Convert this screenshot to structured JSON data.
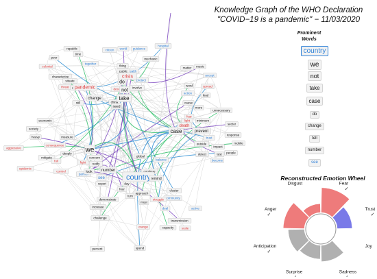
{
  "title": {
    "line1": "Knowledge Graph of the WHO Declaration",
    "line2": "\"COVID−19 is a pandemic\" − 11/03/2020"
  },
  "colors": {
    "edge_green": "#2fc06a",
    "edge_blue": "#2f8fd4",
    "edge_gray": "#c8c8c8",
    "edge_purple": "#7a45c0",
    "edge_red": "#e06060",
    "word_red": "#e03a3a",
    "word_blue": "#2b7fd8",
    "word_black": "#111111",
    "node_fill": "#f2f2f2",
    "node_stroke": "#cfcfcf",
    "emotion_positive": "#ee7b7b",
    "emotion_negative": "#b0b0b0",
    "emotion_trust": "#7a7ae8"
  },
  "prominent_words": {
    "header": "Prominent Words",
    "items": [
      {
        "word": "country",
        "color": "blue",
        "size": 10
      },
      {
        "word": "we",
        "color": "black",
        "size": 10
      },
      {
        "word": "not",
        "color": "black",
        "size": 9
      },
      {
        "word": "take",
        "color": "black",
        "size": 8
      },
      {
        "word": "case",
        "color": "black",
        "size": 8
      },
      {
        "word": "do",
        "color": "black",
        "size": 6
      },
      {
        "word": "change",
        "color": "black",
        "size": 6
      },
      {
        "word": "tell",
        "color": "black",
        "size": 6
      },
      {
        "word": "number",
        "color": "black",
        "size": 6
      },
      {
        "word": "see",
        "color": "blue",
        "size": 6
      }
    ]
  },
  "graph": {
    "hubs": [
      {
        "word": "country",
        "color": "blue",
        "size": 11
      },
      {
        "word": "we",
        "color": "black",
        "size": 10
      },
      {
        "word": "take",
        "color": "black",
        "size": 8
      },
      {
        "word": "case",
        "color": "black",
        "size": 8
      },
      {
        "word": "not",
        "color": "black",
        "size": 7
      },
      {
        "word": "do",
        "color": "black",
        "size": 7
      },
      {
        "word": "change",
        "color": "black",
        "size": 6
      },
      {
        "word": "crisis",
        "color": "red",
        "size": 7
      },
      {
        "word": "pandemic",
        "color": "red",
        "size": 7
      },
      {
        "word": "death",
        "color": "red",
        "size": 6
      },
      {
        "word": "prevent",
        "color": "black",
        "size": 6
      },
      {
        "word": "number",
        "color": "black",
        "size": 6
      },
      {
        "word": "see",
        "color": "blue",
        "size": 6
      },
      {
        "word": "look",
        "color": "black",
        "size": 5
      },
      {
        "word": "need",
        "color": "black",
        "size": 5
      },
      {
        "word": "remind",
        "color": "black",
        "size": 5
      }
    ],
    "words": [
      {
        "word": "republic",
        "color": "black"
      },
      {
        "word": "time",
        "color": "black"
      },
      {
        "word": "poor",
        "color": "black"
      },
      {
        "word": "colonial",
        "color": "red"
      },
      {
        "word": "citizen",
        "color": "blue"
      },
      {
        "word": "world",
        "color": "blue"
      },
      {
        "word": "guidance",
        "color": "blue"
      },
      {
        "word": "mechanic",
        "color": "black"
      },
      {
        "word": "hospital",
        "color": "blue"
      },
      {
        "word": "together",
        "color": "blue"
      },
      {
        "word": "thing",
        "color": "black"
      },
      {
        "word": "health",
        "color": "blue"
      },
      {
        "word": "characterize",
        "color": "black"
      },
      {
        "word": "situate",
        "color": "black"
      },
      {
        "word": "public",
        "color": "black"
      },
      {
        "word": "protect",
        "color": "blue"
      },
      {
        "word": "threat",
        "color": "red"
      },
      {
        "word": "assess",
        "color": "black"
      },
      {
        "word": "describe",
        "color": "red"
      },
      {
        "word": "involve",
        "color": "black"
      },
      {
        "word": "still",
        "color": "black"
      },
      {
        "word": "china",
        "color": "black"
      },
      {
        "word": "matter",
        "color": "black"
      },
      {
        "word": "music",
        "color": "black"
      },
      {
        "word": "accept",
        "color": "blue"
      },
      {
        "word": "word",
        "color": "black"
      },
      {
        "word": "spread",
        "color": "red"
      },
      {
        "word": "lead",
        "color": "black"
      },
      {
        "word": "action",
        "color": "blue"
      },
      {
        "word": "cause",
        "color": "black"
      },
      {
        "word": "more",
        "color": "black"
      },
      {
        "word": "unnecessary",
        "color": "black"
      },
      {
        "word": "fear",
        "color": "red"
      },
      {
        "word": "light",
        "color": "red"
      },
      {
        "word": "minimum",
        "color": "black"
      },
      {
        "word": "sector",
        "color": "black"
      },
      {
        "word": "response",
        "color": "black"
      },
      {
        "word": "outside",
        "color": "black"
      },
      {
        "word": "trust",
        "color": "blue"
      },
      {
        "word": "impact",
        "color": "black"
      },
      {
        "word": "detect",
        "color": "black"
      },
      {
        "word": "test",
        "color": "black"
      },
      {
        "word": "become",
        "color": "blue"
      },
      {
        "word": "mobile",
        "color": "black"
      },
      {
        "word": "people",
        "color": "black"
      },
      {
        "word": "economic",
        "color": "black"
      },
      {
        "word": "society",
        "color": "black"
      },
      {
        "word": "heavy",
        "color": "black"
      },
      {
        "word": "measure",
        "color": "black"
      },
      {
        "word": "aggressive",
        "color": "red"
      },
      {
        "word": "consequence",
        "color": "red"
      },
      {
        "word": "mitigate",
        "color": "black"
      },
      {
        "word": "deeply",
        "color": "black"
      },
      {
        "word": "concern",
        "color": "black"
      },
      {
        "word": "notify",
        "color": "black"
      },
      {
        "word": "full",
        "color": "red"
      },
      {
        "word": "fight",
        "color": "red"
      },
      {
        "word": "epidemic",
        "color": "red"
      },
      {
        "word": "control",
        "color": "red"
      },
      {
        "word": "partner",
        "color": "blue"
      },
      {
        "word": "report",
        "color": "black"
      },
      {
        "word": "day",
        "color": "black"
      },
      {
        "word": "global",
        "color": "black"
      },
      {
        "word": "balance",
        "color": "blue"
      },
      {
        "word": "continue",
        "color": "black"
      },
      {
        "word": "four",
        "color": "black"
      },
      {
        "word": "turn",
        "color": "black"
      },
      {
        "word": "approach",
        "color": "black"
      },
      {
        "word": "cluster",
        "color": "black"
      },
      {
        "word": "community",
        "color": "blue"
      },
      {
        "word": "increase",
        "color": "black"
      },
      {
        "word": "demonstrate",
        "color": "black"
      },
      {
        "word": "must",
        "color": "black"
      },
      {
        "word": "challenge",
        "color": "black"
      },
      {
        "word": "struggle",
        "color": "red"
      },
      {
        "word": "deal",
        "color": "blue"
      },
      {
        "word": "active",
        "color": "blue"
      },
      {
        "word": "transmission",
        "color": "black"
      },
      {
        "word": "scale",
        "color": "red"
      },
      {
        "word": "capacity",
        "color": "black"
      },
      {
        "word": "spend",
        "color": "black"
      },
      {
        "word": "percent",
        "color": "black"
      },
      {
        "word": "orange",
        "color": "red"
      }
    ]
  },
  "emotion_wheel": {
    "title": "Reconstructed Emotion Wheel",
    "check_mark": "✓",
    "emotions": [
      {
        "name": "Fear",
        "level": 0.95,
        "checked": true,
        "color": "positive"
      },
      {
        "name": "Trust",
        "level": 0.55,
        "checked": true,
        "color": "trust"
      },
      {
        "name": "Joy",
        "level": 0.0,
        "checked": false,
        "color": "negative"
      },
      {
        "name": "Sadness",
        "level": 0.6,
        "checked": true,
        "color": "negative"
      },
      {
        "name": "Surprise",
        "level": 0.5,
        "checked": true,
        "color": "negative"
      },
      {
        "name": "Anticipation",
        "level": 0.6,
        "checked": true,
        "color": "negative"
      },
      {
        "name": "Anger",
        "level": 0.8,
        "checked": true,
        "color": "positive"
      },
      {
        "name": "Disgust",
        "level": 0.3,
        "checked": false,
        "color": "positive"
      }
    ]
  }
}
